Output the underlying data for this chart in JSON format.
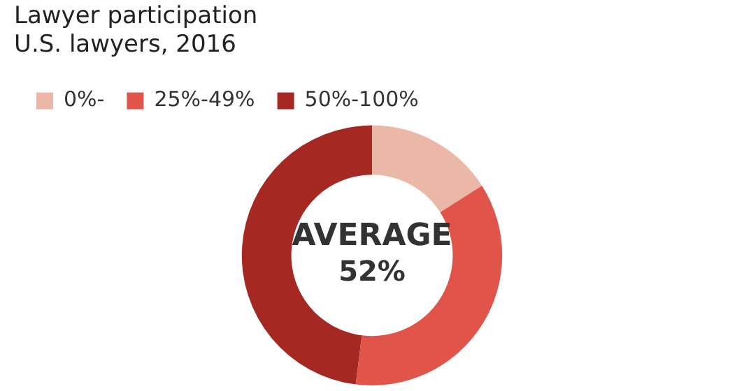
{
  "chart_data": {
    "type": "donut",
    "title": "Lawyer participation",
    "subtitle": "U.S. lawyers, 2016",
    "categories": [
      "0%-",
      "25%-49%",
      "50%-100%"
    ],
    "values": [
      16,
      36,
      48
    ],
    "colors": [
      "#ebb8a8",
      "#e0544a",
      "#a62823"
    ],
    "legend": "top left",
    "annotations": [
      "AVERAGE",
      "52%"
    ]
  }
}
